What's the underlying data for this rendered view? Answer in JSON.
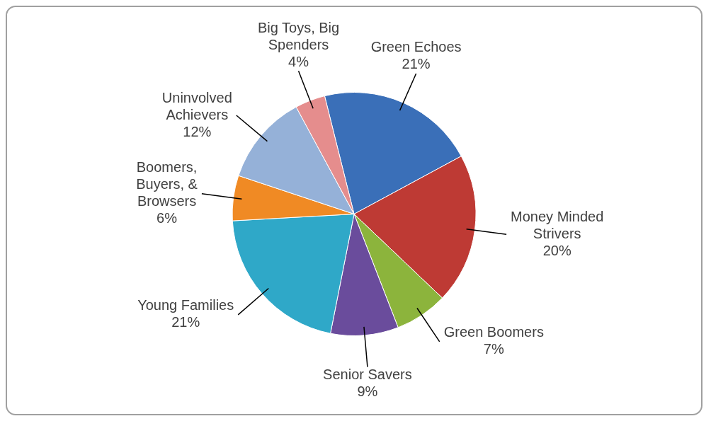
{
  "chart_data": {
    "type": "pie",
    "categories": [
      "Green Echoes",
      "Money Minded Strivers",
      "Green Boomers",
      "Senior Savers",
      "Young Families",
      "Boomers, Buyers, & Browsers",
      "Uninvolved Achievers",
      "Big Toys, Big Spenders"
    ],
    "values": [
      21,
      20,
      7,
      9,
      21,
      6,
      12,
      4
    ],
    "value_labels": [
      "21%",
      "20%",
      "7%",
      "9%",
      "21%",
      "6%",
      "12%",
      "4%"
    ],
    "colors": [
      "#3a6fb8",
      "#be3a34",
      "#8cb43c",
      "#6a4c9c",
      "#2fa8c8",
      "#f08a24",
      "#95b1d8",
      "#e58d8d"
    ],
    "legend": false
  }
}
